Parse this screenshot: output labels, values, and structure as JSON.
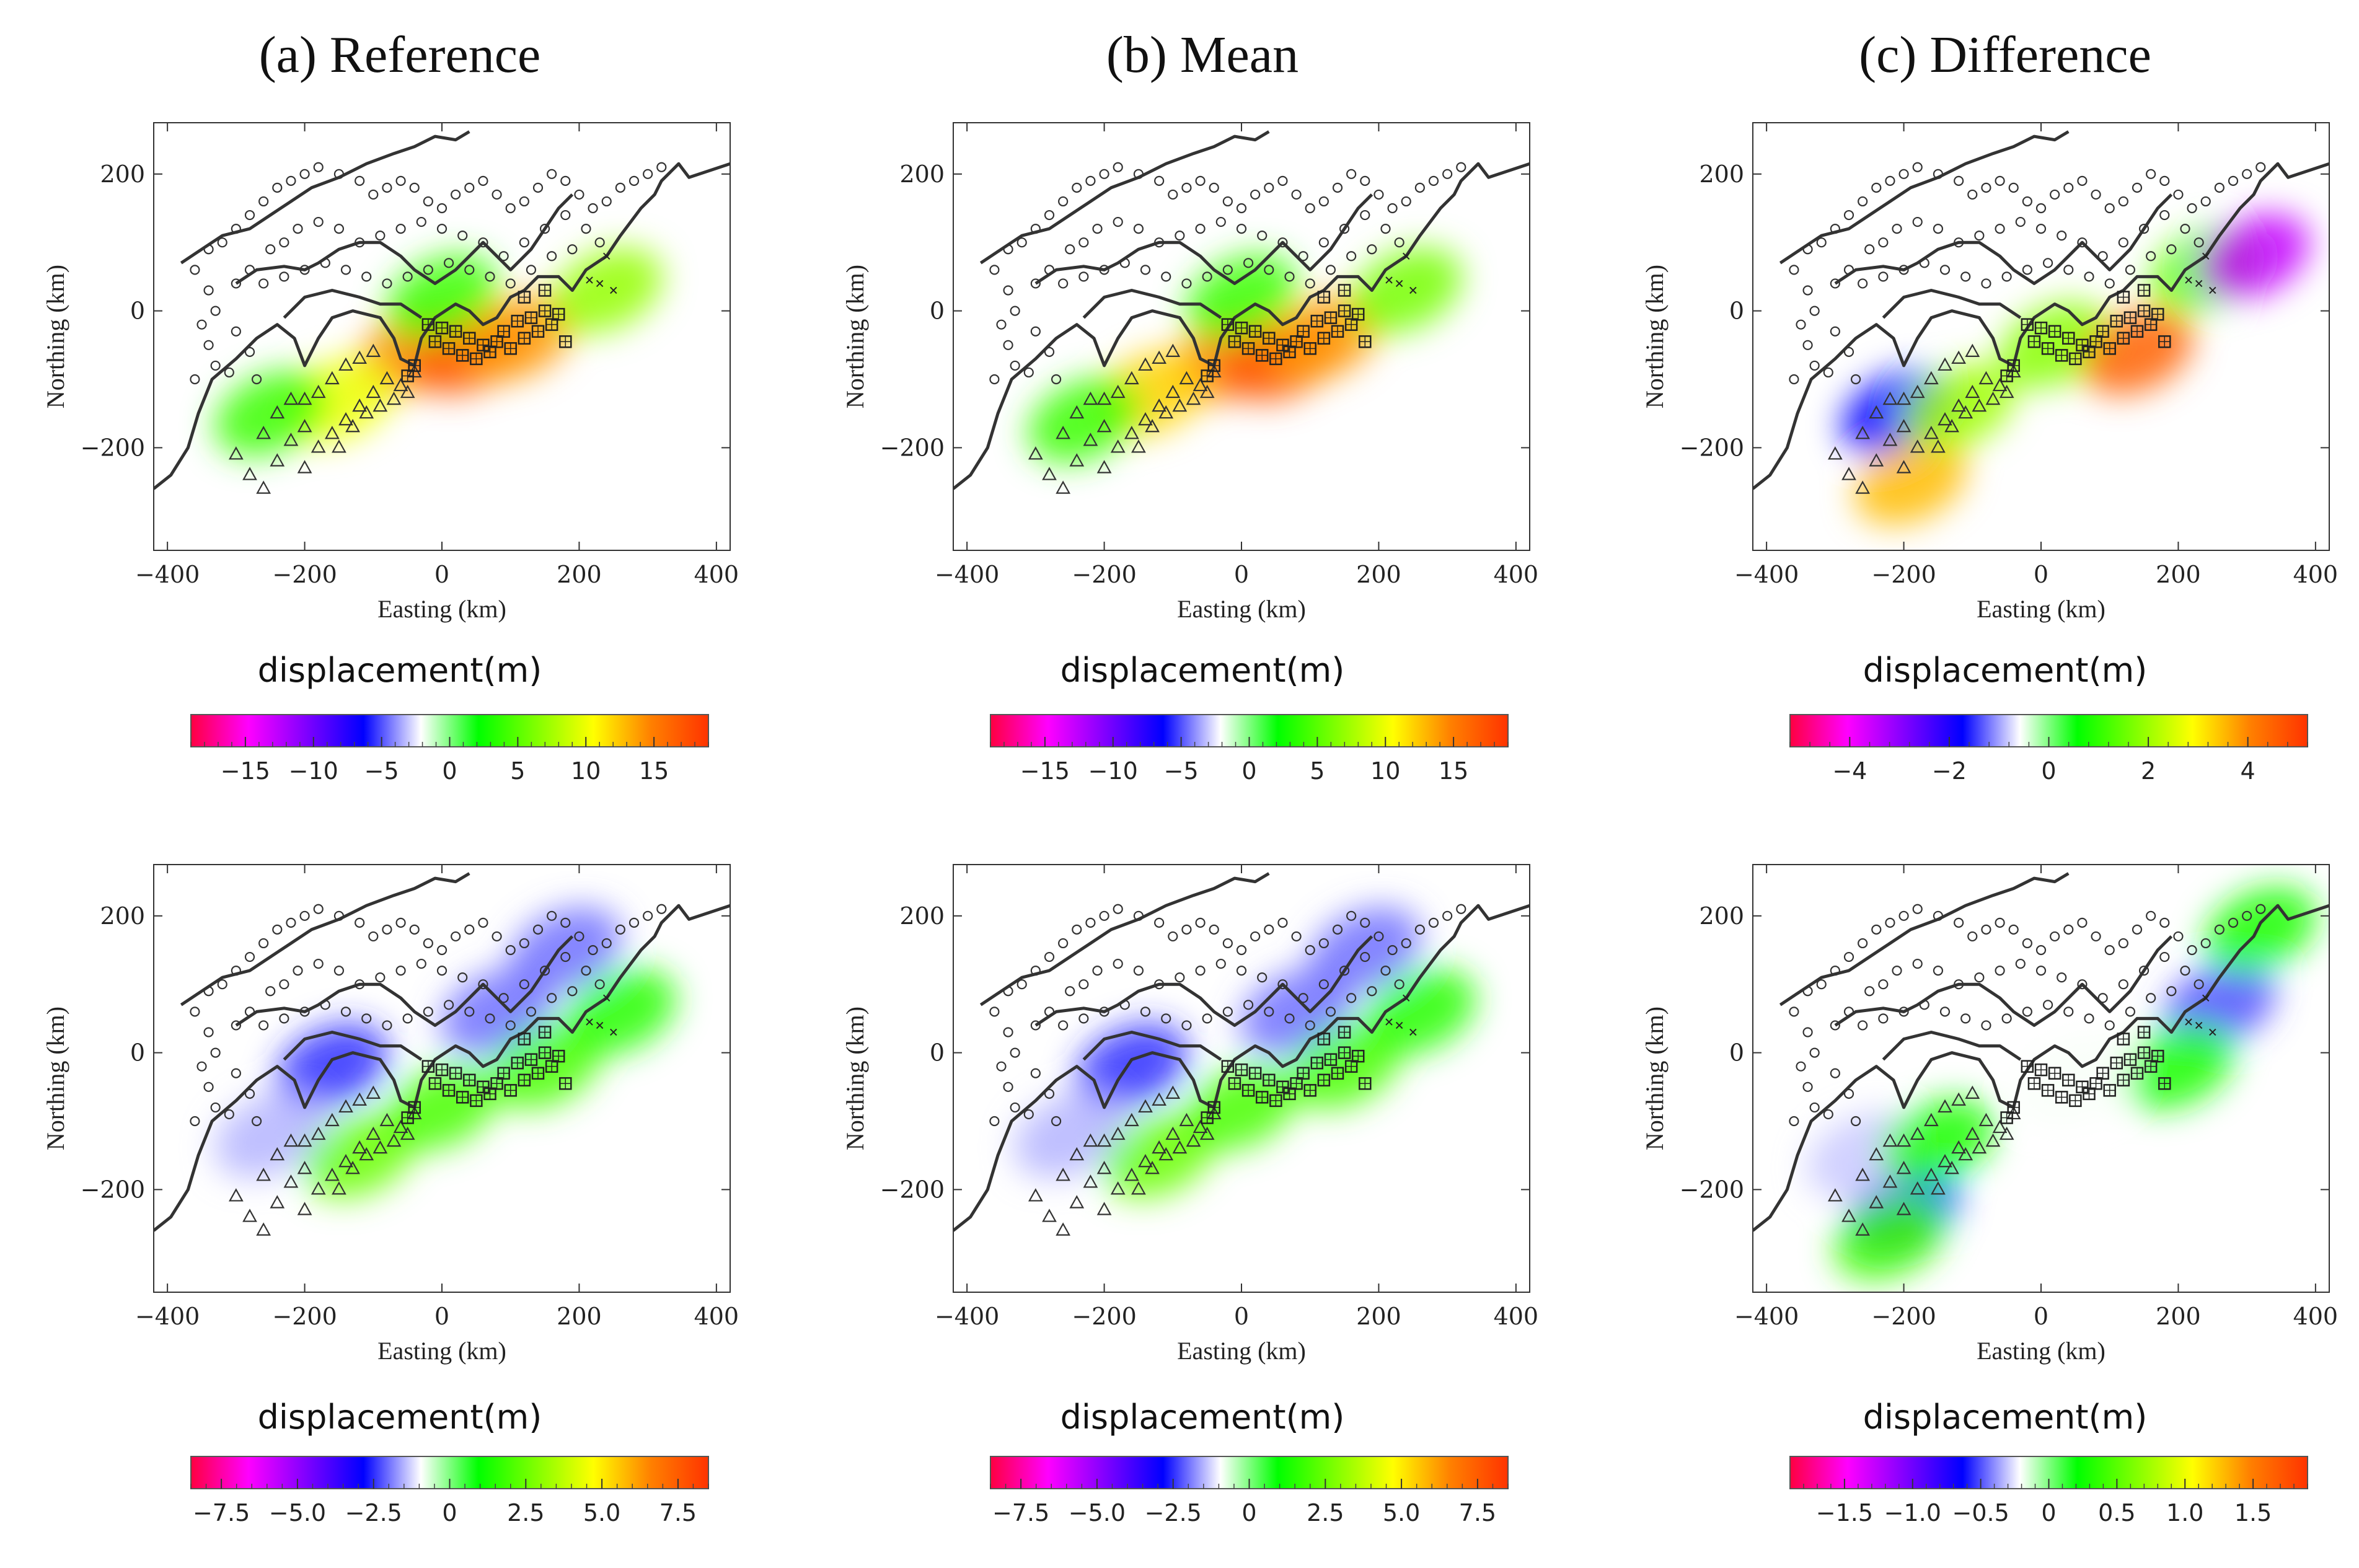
{
  "column_titles": [
    "(a) Reference",
    "(b) Mean",
    "(c) Difference"
  ],
  "axis": {
    "xlabel": "Easting (km)",
    "ylabel": "Northing (km)",
    "xlim": [
      -420,
      420
    ],
    "ylim": [
      -350,
      275
    ],
    "xticks": [
      -400,
      -200,
      0,
      200,
      400
    ],
    "yticks": [
      -200,
      0,
      200
    ]
  },
  "colorbar_label": "displacement(m)",
  "colorbar_colors": [
    "#ff0040",
    "#ff00ff",
    "#8000ff",
    "#0000ff",
    "#ffffff",
    "#00ff00",
    "#80ff00",
    "#ffff00",
    "#ff8000",
    "#ff3300"
  ],
  "chart_data": [
    {
      "type": "heatmap",
      "row": 1,
      "col": 1,
      "title": "(a) Reference",
      "component": "horizontal",
      "colorbar": {
        "range": [
          -19,
          19
        ],
        "ticks": [
          -15,
          -10,
          -5,
          0,
          5,
          10,
          15
        ],
        "tick_labels": [
          "−15",
          "−10",
          "−5",
          "0",
          "5",
          "10",
          "15"
        ]
      },
      "blobs": [
        {
          "x": -40,
          "y": -60,
          "v": 15
        },
        {
          "x": 40,
          "y": -60,
          "v": 17
        },
        {
          "x": -150,
          "y": -130,
          "v": 10
        },
        {
          "x": 110,
          "y": -40,
          "v": 14
        },
        {
          "x": 240,
          "y": 30,
          "v": 7
        },
        {
          "x": 0,
          "y": 20,
          "v": 4
        },
        {
          "x": -250,
          "y": -150,
          "v": 4
        }
      ]
    },
    {
      "type": "heatmap",
      "row": 1,
      "col": 2,
      "title": "(b) Mean",
      "component": "horizontal",
      "colorbar": {
        "range": [
          -19,
          19
        ],
        "ticks": [
          -15,
          -10,
          -5,
          0,
          5,
          10,
          15
        ],
        "tick_labels": [
          "−15",
          "−10",
          "−5",
          "0",
          "5",
          "10",
          "15"
        ]
      },
      "blobs": [
        {
          "x": -20,
          "y": -70,
          "v": 16
        },
        {
          "x": 60,
          "y": -70,
          "v": 17
        },
        {
          "x": -130,
          "y": -120,
          "v": 12
        },
        {
          "x": 120,
          "y": -40,
          "v": 14
        },
        {
          "x": 240,
          "y": 30,
          "v": 6
        },
        {
          "x": 0,
          "y": 20,
          "v": 4
        },
        {
          "x": -230,
          "y": -160,
          "v": 4
        }
      ]
    },
    {
      "type": "heatmap",
      "row": 1,
      "col": 3,
      "title": "(c) Difference",
      "component": "horizontal",
      "colorbar": {
        "range": [
          -5.2,
          5.2
        ],
        "ticks": [
          -4,
          -2,
          0,
          2,
          4
        ],
        "tick_labels": [
          "−4",
          "−2",
          "0",
          "2",
          "4"
        ]
      },
      "blobs": [
        {
          "x": -210,
          "y": -150,
          "v": -1.8
        },
        {
          "x": -190,
          "y": -250,
          "v": 3.5
        },
        {
          "x": -120,
          "y": -140,
          "v": 2.0
        },
        {
          "x": 20,
          "y": -50,
          "v": 1.8
        },
        {
          "x": 140,
          "y": -60,
          "v": 4.5
        },
        {
          "x": 240,
          "y": 60,
          "v": 1.5
        },
        {
          "x": 310,
          "y": 80,
          "v": -3.5
        }
      ]
    },
    {
      "type": "heatmap",
      "row": 2,
      "col": 1,
      "title": "(a) Reference",
      "component": "vertical",
      "colorbar": {
        "range": [
          -8.5,
          8.5
        ],
        "ticks": [
          -7.5,
          -5.0,
          -2.5,
          0,
          2.5,
          5.0,
          7.5
        ],
        "tick_labels": [
          "−7.5",
          "−5.0",
          "−2.5",
          "0",
          "2.5",
          "5.0",
          "7.5"
        ]
      },
      "blobs": [
        {
          "x": -160,
          "y": -20,
          "v": -2.5
        },
        {
          "x": 80,
          "y": 60,
          "v": -2.0
        },
        {
          "x": 180,
          "y": 150,
          "v": -2.0
        },
        {
          "x": -250,
          "y": -120,
          "v": -1.5
        },
        {
          "x": -120,
          "y": -150,
          "v": 2.5
        },
        {
          "x": 0,
          "y": -80,
          "v": 2.0
        },
        {
          "x": 150,
          "y": -20,
          "v": 2.0
        },
        {
          "x": 260,
          "y": 60,
          "v": 1.5
        }
      ]
    },
    {
      "type": "heatmap",
      "row": 2,
      "col": 2,
      "title": "(b) Mean",
      "component": "vertical",
      "colorbar": {
        "range": [
          -8.5,
          8.5
        ],
        "ticks": [
          -7.5,
          -5.0,
          -2.5,
          0,
          2.5,
          5.0,
          7.5
        ],
        "tick_labels": [
          "−7.5",
          "−5.0",
          "−2.5",
          "0",
          "2.5",
          "5.0",
          "7.5"
        ]
      },
      "blobs": [
        {
          "x": -160,
          "y": -20,
          "v": -2.5
        },
        {
          "x": 80,
          "y": 60,
          "v": -2.0
        },
        {
          "x": 180,
          "y": 150,
          "v": -2.0
        },
        {
          "x": -250,
          "y": -120,
          "v": -1.5
        },
        {
          "x": -120,
          "y": -150,
          "v": 2.5
        },
        {
          "x": 0,
          "y": -80,
          "v": 2.0
        },
        {
          "x": 150,
          "y": -20,
          "v": 2.0
        },
        {
          "x": 260,
          "y": 60,
          "v": 1.5
        }
      ]
    },
    {
      "type": "heatmap",
      "row": 2,
      "col": 3,
      "title": "(c) Difference",
      "component": "vertical",
      "colorbar": {
        "range": [
          -1.9,
          1.9
        ],
        "ticks": [
          -1.5,
          -1.0,
          -0.5,
          0,
          0.5,
          1.0,
          1.5
        ],
        "tick_labels": [
          "−1.5",
          "−1.0",
          "−0.5",
          "0",
          "0.5",
          "1.0",
          "1.5"
        ]
      },
      "blobs": [
        {
          "x": -200,
          "y": -230,
          "v": -0.6
        },
        {
          "x": -260,
          "y": -150,
          "v": -0.3
        },
        {
          "x": -220,
          "y": -270,
          "v": 0.4
        },
        {
          "x": -150,
          "y": -130,
          "v": 0.3
        },
        {
          "x": 260,
          "y": 70,
          "v": -0.5
        },
        {
          "x": 200,
          "y": -20,
          "v": 0.3
        },
        {
          "x": 320,
          "y": 180,
          "v": 0.3
        },
        {
          "x": 50,
          "y": -40,
          "v": -0.2
        }
      ]
    }
  ],
  "stations": {
    "circles": [
      [
        -360,
        60
      ],
      [
        -340,
        90
      ],
      [
        -320,
        100
      ],
      [
        -300,
        120
      ],
      [
        -280,
        140
      ],
      [
        -260,
        160
      ],
      [
        -240,
        180
      ],
      [
        -220,
        190
      ],
      [
        -200,
        200
      ],
      [
        -180,
        210
      ],
      [
        -150,
        200
      ],
      [
        -120,
        190
      ],
      [
        -100,
        170
      ],
      [
        -80,
        180
      ],
      [
        -60,
        190
      ],
      [
        -40,
        180
      ],
      [
        -20,
        160
      ],
      [
        0,
        150
      ],
      [
        20,
        170
      ],
      [
        40,
        180
      ],
      [
        60,
        190
      ],
      [
        80,
        170
      ],
      [
        100,
        150
      ],
      [
        120,
        160
      ],
      [
        140,
        180
      ],
      [
        160,
        200
      ],
      [
        180,
        190
      ],
      [
        200,
        170
      ],
      [
        220,
        150
      ],
      [
        240,
        160
      ],
      [
        260,
        180
      ],
      [
        280,
        190
      ],
      [
        300,
        200
      ],
      [
        320,
        210
      ],
      [
        -340,
        30
      ],
      [
        -330,
        0
      ],
      [
        -350,
        -20
      ],
      [
        -340,
        -50
      ],
      [
        -330,
        -80
      ],
      [
        -360,
        -100
      ],
      [
        -300,
        40
      ],
      [
        -280,
        60
      ],
      [
        -250,
        90
      ],
      [
        -230,
        100
      ],
      [
        -210,
        120
      ],
      [
        -180,
        130
      ],
      [
        -150,
        120
      ],
      [
        -120,
        100
      ],
      [
        -90,
        110
      ],
      [
        -60,
        120
      ],
      [
        -30,
        130
      ],
      [
        0,
        120
      ],
      [
        30,
        110
      ],
      [
        60,
        100
      ],
      [
        90,
        80
      ],
      [
        120,
        100
      ],
      [
        150,
        120
      ],
      [
        180,
        140
      ],
      [
        210,
        120
      ],
      [
        230,
        100
      ],
      [
        -260,
        40
      ],
      [
        -230,
        50
      ],
      [
        -200,
        60
      ],
      [
        -170,
        70
      ],
      [
        -140,
        60
      ],
      [
        -110,
        50
      ],
      [
        -80,
        40
      ],
      [
        -50,
        50
      ],
      [
        -20,
        60
      ],
      [
        10,
        70
      ],
      [
        40,
        60
      ],
      [
        70,
        50
      ],
      [
        100,
        40
      ],
      [
        130,
        60
      ],
      [
        160,
        80
      ],
      [
        190,
        90
      ],
      [
        -300,
        -30
      ],
      [
        -280,
        -60
      ],
      [
        -310,
        -90
      ],
      [
        -270,
        -100
      ]
    ],
    "triangles": [
      [
        -300,
        -210
      ],
      [
        -280,
        -240
      ],
      [
        -260,
        -260
      ],
      [
        -240,
        -220
      ],
      [
        -220,
        -190
      ],
      [
        -200,
        -170
      ],
      [
        -180,
        -200
      ],
      [
        -160,
        -180
      ],
      [
        -140,
        -160
      ],
      [
        -120,
        -140
      ],
      [
        -100,
        -120
      ],
      [
        -80,
        -100
      ],
      [
        -60,
        -110
      ],
      [
        -40,
        -90
      ],
      [
        -200,
        -130
      ],
      [
        -180,
        -120
      ],
      [
        -160,
        -100
      ],
      [
        -140,
        -80
      ],
      [
        -120,
        -70
      ],
      [
        -100,
        -60
      ],
      [
        -240,
        -150
      ],
      [
        -220,
        -130
      ],
      [
        -260,
        -180
      ],
      [
        -200,
        -230
      ],
      [
        -150,
        -200
      ],
      [
        -130,
        -170
      ],
      [
        -110,
        -150
      ],
      [
        -90,
        -140
      ],
      [
        -70,
        -130
      ],
      [
        -50,
        -120
      ]
    ],
    "squares": [
      [
        -20,
        -20
      ],
      [
        0,
        -25
      ],
      [
        20,
        -30
      ],
      [
        40,
        -40
      ],
      [
        60,
        -50
      ],
      [
        80,
        -45
      ],
      [
        100,
        -55
      ],
      [
        120,
        -40
      ],
      [
        140,
        -30
      ],
      [
        160,
        -20
      ],
      [
        -10,
        -45
      ],
      [
        10,
        -55
      ],
      [
        30,
        -65
      ],
      [
        50,
        -70
      ],
      [
        70,
        -60
      ],
      [
        130,
        -10
      ],
      [
        150,
        0
      ],
      [
        170,
        -5
      ],
      [
        150,
        30
      ],
      [
        120,
        20
      ],
      [
        -40,
        -80
      ],
      [
        -50,
        -95
      ],
      [
        90,
        -30
      ],
      [
        110,
        -15
      ],
      [
        180,
        -45
      ]
    ],
    "crosses": [
      [
        240,
        80
      ],
      [
        230,
        40
      ],
      [
        250,
        30
      ],
      [
        215,
        45
      ]
    ]
  },
  "coastline": [
    [
      [
        -420,
        -260
      ],
      [
        -395,
        -240
      ],
      [
        -370,
        -200
      ],
      [
        -355,
        -150
      ],
      [
        -335,
        -100
      ],
      [
        -300,
        -70
      ],
      [
        -270,
        -40
      ],
      [
        -240,
        -20
      ],
      [
        -215,
        -40
      ],
      [
        -200,
        -80
      ],
      [
        -180,
        -40
      ],
      [
        -160,
        -10
      ],
      [
        -130,
        0
      ],
      [
        -90,
        -10
      ],
      [
        -70,
        -40
      ],
      [
        -60,
        -70
      ],
      [
        -40,
        -80
      ],
      [
        -30,
        -40
      ],
      [
        -10,
        -10
      ],
      [
        20,
        10
      ],
      [
        40,
        0
      ],
      [
        60,
        -20
      ],
      [
        80,
        -10
      ],
      [
        100,
        20
      ],
      [
        120,
        30
      ],
      [
        140,
        50
      ],
      [
        170,
        50
      ],
      [
        190,
        30
      ],
      [
        210,
        60
      ],
      [
        240,
        80
      ],
      [
        260,
        110
      ],
      [
        290,
        150
      ],
      [
        310,
        170
      ],
      [
        320,
        190
      ],
      [
        345,
        215
      ],
      [
        360,
        195
      ],
      [
        390,
        205
      ],
      [
        420,
        215
      ]
    ],
    [
      [
        -380,
        70
      ],
      [
        -350,
        90
      ],
      [
        -320,
        110
      ],
      [
        -280,
        120
      ],
      [
        -250,
        140
      ],
      [
        -220,
        160
      ],
      [
        -190,
        180
      ],
      [
        -150,
        195
      ],
      [
        -110,
        215
      ],
      [
        -70,
        230
      ],
      [
        -40,
        240
      ],
      [
        -10,
        255
      ],
      [
        20,
        250
      ],
      [
        40,
        262
      ]
    ],
    [
      [
        -300,
        40
      ],
      [
        -270,
        60
      ],
      [
        -230,
        65
      ],
      [
        -200,
        60
      ],
      [
        -180,
        70
      ],
      [
        -150,
        90
      ],
      [
        -120,
        100
      ],
      [
        -90,
        100
      ],
      [
        -60,
        80
      ],
      [
        -40,
        60
      ],
      [
        -10,
        40
      ],
      [
        20,
        60
      ],
      [
        40,
        80
      ],
      [
        60,
        100
      ],
      [
        80,
        80
      ],
      [
        100,
        60
      ],
      [
        130,
        90
      ],
      [
        150,
        120
      ],
      [
        170,
        150
      ],
      [
        190,
        170
      ]
    ],
    [
      [
        -230,
        -10
      ],
      [
        -200,
        20
      ],
      [
        -160,
        30
      ],
      [
        -120,
        20
      ],
      [
        -90,
        10
      ],
      [
        -60,
        10
      ],
      [
        -30,
        -10
      ]
    ]
  ]
}
